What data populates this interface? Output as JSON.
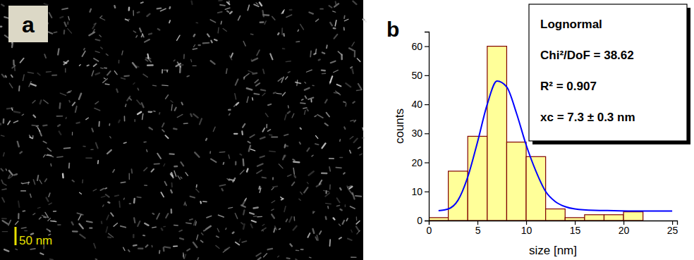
{
  "image_panel": {
    "label": "a",
    "scale_bar": "50 nm"
  },
  "chart_data": {
    "type": "histogram",
    "panel_label": "b",
    "x_label": "size [nm]",
    "y_label": "counts",
    "bins": [
      0,
      2,
      4,
      6,
      8,
      10,
      12,
      14,
      16,
      18,
      20,
      22
    ],
    "values": [
      1,
      17,
      29,
      60,
      27,
      22,
      4,
      1,
      2,
      2,
      3
    ],
    "color": "#ffff99",
    "series": [
      {
        "type": "line",
        "color": "#0000ff",
        "x": [
          1,
          2,
          3,
          4,
          5,
          6,
          7,
          8,
          9,
          10,
          11,
          12,
          13,
          14,
          15,
          17,
          19,
          21,
          23,
          25
        ],
        "values": [
          3.4,
          4,
          7,
          15,
          27,
          40,
          48,
          46,
          37,
          26,
          17,
          10,
          6.5,
          4.8,
          4,
          3.5,
          3.4,
          3.3,
          3.3,
          3.3
        ]
      }
    ],
    "annotations": [
      "Lognormal",
      "Chi²/DoF = 38.62",
      "R² = 0.907",
      "xc = 7.3 ± 0.3 nm"
    ],
    "xlim": [
      0,
      25.5
    ],
    "xticks": [
      0,
      5,
      10,
      15,
      20,
      25
    ],
    "ylim": [
      0,
      65
    ],
    "yticks": [
      0,
      10,
      20,
      30,
      40,
      50,
      60
    ]
  }
}
